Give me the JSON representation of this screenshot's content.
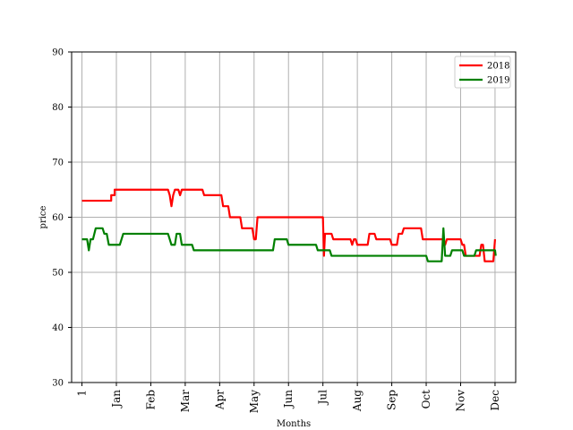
{
  "chart_data": {
    "type": "line",
    "xlabel": "Months",
    "ylabel": "price",
    "ylim": [
      30,
      90
    ],
    "yticks": [
      30,
      40,
      50,
      60,
      70,
      80,
      90
    ],
    "xlim": [
      -0.3,
      12.6
    ],
    "xticks": [
      {
        "value": 0,
        "label": "1"
      },
      {
        "value": 1,
        "label": "Jan"
      },
      {
        "value": 2,
        "label": "Feb"
      },
      {
        "value": 3,
        "label": "Mar"
      },
      {
        "value": 4,
        "label": "Apr"
      },
      {
        "value": 5,
        "label": "May"
      },
      {
        "value": 6,
        "label": "Jun"
      },
      {
        "value": 7,
        "label": "Jul"
      },
      {
        "value": 8,
        "label": "Aug"
      },
      {
        "value": 9,
        "label": "Sep"
      },
      {
        "value": 10,
        "label": "Oct"
      },
      {
        "value": 11,
        "label": "Nov"
      },
      {
        "value": 12,
        "label": "Dec"
      }
    ],
    "grid": true,
    "legend_position": "top-right",
    "series": [
      {
        "name": "2018",
        "color": "#ff0000",
        "points": [
          [
            0.0,
            63
          ],
          [
            0.85,
            63
          ],
          [
            0.85,
            64
          ],
          [
            0.95,
            64
          ],
          [
            0.95,
            65
          ],
          [
            2.5,
            65
          ],
          [
            2.55,
            64
          ],
          [
            2.6,
            62
          ],
          [
            2.65,
            64
          ],
          [
            2.7,
            65
          ],
          [
            2.8,
            65
          ],
          [
            2.85,
            64
          ],
          [
            2.9,
            65
          ],
          [
            3.5,
            65
          ],
          [
            3.55,
            64
          ],
          [
            4.05,
            64
          ],
          [
            4.1,
            62
          ],
          [
            4.25,
            62
          ],
          [
            4.3,
            60
          ],
          [
            4.6,
            60
          ],
          [
            4.65,
            58
          ],
          [
            4.95,
            58
          ],
          [
            5.0,
            56
          ],
          [
            5.05,
            56
          ],
          [
            5.1,
            60
          ],
          [
            7.0,
            60
          ],
          [
            7.03,
            53
          ],
          [
            7.06,
            57
          ],
          [
            7.25,
            57
          ],
          [
            7.3,
            56
          ],
          [
            7.8,
            56
          ],
          [
            7.85,
            55
          ],
          [
            7.9,
            56
          ],
          [
            7.95,
            56
          ],
          [
            8.0,
            55
          ],
          [
            8.3,
            55
          ],
          [
            8.35,
            57
          ],
          [
            8.5,
            57
          ],
          [
            8.55,
            56
          ],
          [
            8.95,
            56
          ],
          [
            9.0,
            55
          ],
          [
            9.15,
            55
          ],
          [
            9.2,
            57
          ],
          [
            9.3,
            57
          ],
          [
            9.35,
            58
          ],
          [
            9.85,
            58
          ],
          [
            9.9,
            56
          ],
          [
            10.5,
            56
          ],
          [
            10.55,
            55
          ],
          [
            10.6,
            56
          ],
          [
            11.0,
            56
          ],
          [
            11.05,
            55
          ],
          [
            11.1,
            55
          ],
          [
            11.15,
            53
          ],
          [
            11.55,
            53
          ],
          [
            11.6,
            55
          ],
          [
            11.65,
            55
          ],
          [
            11.7,
            52
          ],
          [
            11.95,
            52
          ],
          [
            12.0,
            56
          ]
        ]
      },
      {
        "name": "2019",
        "color": "#008000",
        "points": [
          [
            0.0,
            56
          ],
          [
            0.15,
            56
          ],
          [
            0.2,
            54
          ],
          [
            0.25,
            56
          ],
          [
            0.32,
            56
          ],
          [
            0.4,
            58
          ],
          [
            0.6,
            58
          ],
          [
            0.65,
            57
          ],
          [
            0.72,
            57
          ],
          [
            0.78,
            55
          ],
          [
            1.1,
            55
          ],
          [
            1.2,
            57
          ],
          [
            2.5,
            57
          ],
          [
            2.6,
            55
          ],
          [
            2.7,
            55
          ],
          [
            2.75,
            57
          ],
          [
            2.85,
            57
          ],
          [
            2.9,
            55
          ],
          [
            3.2,
            55
          ],
          [
            3.25,
            54
          ],
          [
            5.55,
            54
          ],
          [
            5.6,
            56
          ],
          [
            5.95,
            56
          ],
          [
            6.0,
            55
          ],
          [
            6.8,
            55
          ],
          [
            6.85,
            54
          ],
          [
            7.2,
            54
          ],
          [
            7.25,
            53
          ],
          [
            10.0,
            53
          ],
          [
            10.05,
            52
          ],
          [
            10.45,
            52
          ],
          [
            10.5,
            58
          ],
          [
            10.55,
            53
          ],
          [
            10.7,
            53
          ],
          [
            10.75,
            54
          ],
          [
            11.05,
            54
          ],
          [
            11.1,
            53
          ],
          [
            11.4,
            53
          ],
          [
            11.45,
            54
          ],
          [
            12.0,
            54
          ],
          [
            12.02,
            53
          ]
        ]
      }
    ]
  }
}
